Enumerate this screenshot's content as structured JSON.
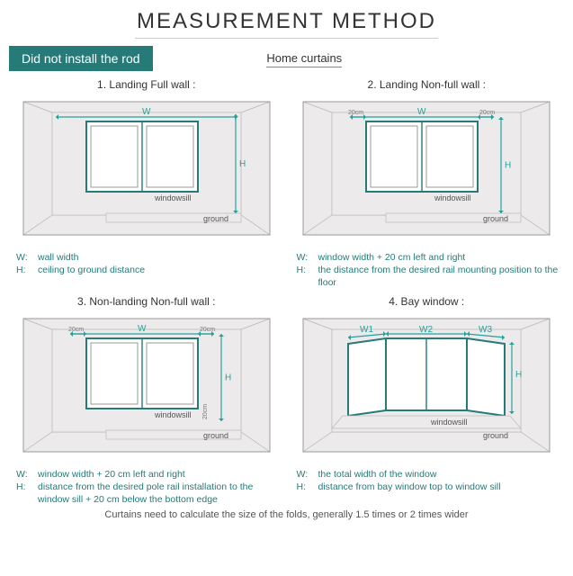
{
  "title": "MEASUREMENT METHOD",
  "ribbon": "Did not install the rod",
  "subheading": "Home curtains",
  "footer": "Curtains need to calculate the size of the folds, generally 1.5 times or 2 times wider",
  "colors": {
    "accent": "#267a78",
    "dim": "#25a19c",
    "wall": "#999999",
    "shade": "#eceaea",
    "text": "#333333"
  },
  "panels": [
    {
      "title": "1. Landing Full wall :",
      "type": "room-window",
      "full_wall_w": true,
      "extend_20cm": false,
      "h_to_floor": true,
      "bay": false,
      "labels": {
        "w": "W",
        "h": "H",
        "windowsill": "windowsill",
        "ground": "ground"
      },
      "caption": [
        {
          "k": "W:",
          "v": "wall width"
        },
        {
          "k": "H:",
          "v": "ceiling to ground distance"
        }
      ]
    },
    {
      "title": "2. Landing Non-full wall :",
      "type": "room-window",
      "full_wall_w": false,
      "extend_20cm": true,
      "h_to_floor": true,
      "bay": false,
      "labels": {
        "w": "W",
        "h": "H",
        "ext": "20cm",
        "windowsill": "windowsill",
        "ground": "ground"
      },
      "caption": [
        {
          "k": "W:",
          "v": "window width + 20 cm left and right"
        },
        {
          "k": "H:",
          "v": "the distance from the desired rail mounting position to the floor"
        }
      ]
    },
    {
      "title": "3. Non-landing Non-full wall :",
      "type": "room-window",
      "full_wall_w": false,
      "extend_20cm": true,
      "h_to_floor": false,
      "bay": false,
      "labels": {
        "w": "W",
        "h": "H",
        "ext": "20cm",
        "windowsill": "windowsill",
        "ground": "ground"
      },
      "caption": [
        {
          "k": "W:",
          "v": "window width + 20 cm left and right"
        },
        {
          "k": "H:",
          "v": "distance from the desired pole rail installation to the window sill + 20 cm below  the bottom edge"
        }
      ]
    },
    {
      "title": "4. Bay window :",
      "type": "bay-window",
      "bay": true,
      "labels": {
        "w1": "W1",
        "w2": "W2",
        "w3": "W3",
        "h": "H",
        "windowsill": "windowsill",
        "ground": "ground"
      },
      "caption": [
        {
          "k": "W:",
          "v": "the total width of the window"
        },
        {
          "k": "H:",
          "v": "distance from bay window top to window sill"
        }
      ]
    }
  ]
}
